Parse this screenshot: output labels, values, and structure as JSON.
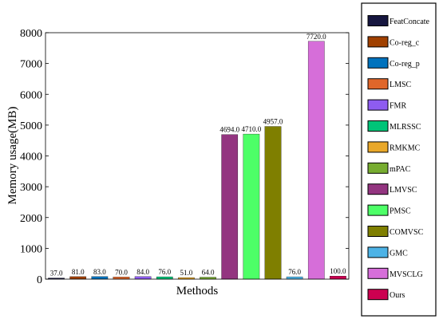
{
  "chart_data": {
    "type": "bar",
    "xlabel": "Methods",
    "ylabel": "Memory usage(MB)",
    "ylim": [
      0,
      8000
    ],
    "yticks": [
      0,
      1000,
      2000,
      3000,
      4000,
      5000,
      6000,
      7000,
      8000
    ],
    "grid": false,
    "legend_position": "right (outside plot)",
    "categories": [
      "FeatConcate",
      "Co-reg_c",
      "Co-reg_p",
      "LMSC",
      "FMR",
      "MLRSSC",
      "RMKMC",
      "mPAC",
      "LMVSC",
      "PMSC",
      "COMVSC",
      "GMC",
      "MVSCLG",
      "Ours"
    ],
    "values": [
      37,
      81,
      83,
      70,
      84,
      76,
      51,
      64,
      4694,
      4710,
      4957,
      76,
      7720,
      100
    ],
    "value_labels": [
      "37.0",
      "81.0",
      "83.0",
      "70.0",
      "84.0",
      "76.0",
      "51.0",
      "64.0",
      "4694.0",
      "4710.0",
      "4957.0",
      "76.0",
      "7720.0",
      "100.0"
    ],
    "colors": [
      "#16163f",
      "#a04000",
      "#0072bd",
      "#e0662a",
      "#8e5cf0",
      "#00c478",
      "#e9a82a",
      "#77ac30",
      "#933580",
      "#4dff67",
      "#7f7f00",
      "#4db3e6",
      "#d66ed9",
      "#cc0050"
    ]
  }
}
